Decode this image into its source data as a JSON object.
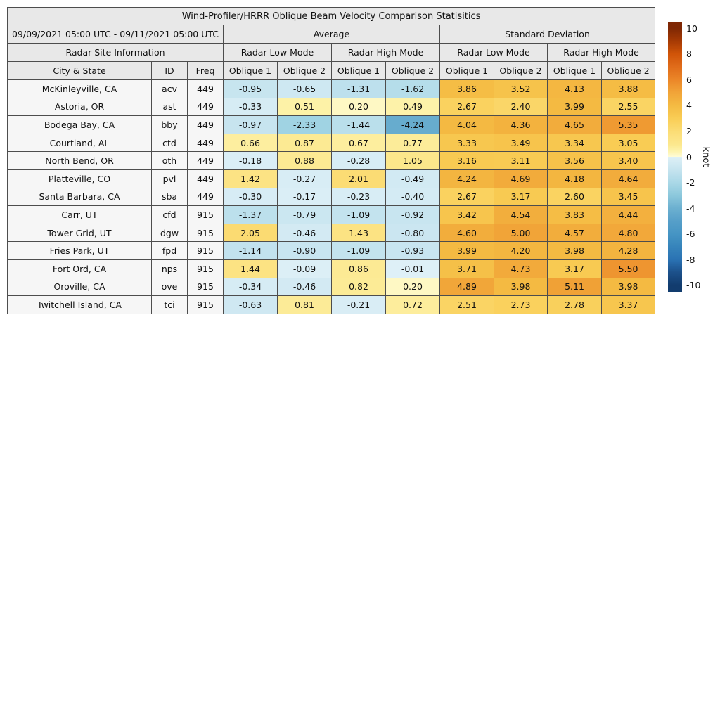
{
  "table": {
    "title": "Wind-Profiler/HRRR Oblique Beam Velocity Comparison Statisitics",
    "group_row": [
      {
        "label": "09/09/2021 05:00 UTC - 09/11/2021 05:00 UTC",
        "span": 3
      },
      {
        "label": "Average",
        "span": 4
      },
      {
        "label": "Standard Deviation",
        "span": 4
      }
    ],
    "mode_row": [
      {
        "label": "Radar Site Information",
        "span": 3
      },
      {
        "label": "Radar Low Mode",
        "span": 2
      },
      {
        "label": "Radar High Mode",
        "span": 2
      },
      {
        "label": "Radar Low Mode",
        "span": 2
      },
      {
        "label": "Radar High Mode",
        "span": 2
      }
    ],
    "column_headers": [
      "City & State",
      "ID",
      "Freq",
      "Oblique 1",
      "Oblique 2",
      "Oblique 1",
      "Oblique 2",
      "Oblique 1",
      "Oblique 2",
      "Oblique 1",
      "Oblique 2"
    ],
    "header_bg": "#e8e8e8",
    "row_header_bg": "#f6f6f6",
    "border_color": "#4d4d4d"
  },
  "chart_data": {
    "type": "heatmap",
    "title": "Wind-Profiler/HRRR Oblique Beam Velocity Comparison Statisitics",
    "period": "09/09/2021 05:00 UTC - 09/11/2021 05:00 UTC",
    "value_columns": [
      "Average / Radar Low Mode / Oblique 1",
      "Average / Radar Low Mode / Oblique 2",
      "Average / Radar High Mode / Oblique 1",
      "Average / Radar High Mode / Oblique 2",
      "Standard Deviation / Radar Low Mode / Oblique 1",
      "Standard Deviation / Radar Low Mode / Oblique 2",
      "Standard Deviation / Radar High Mode / Oblique 1",
      "Standard Deviation / Radar High Mode / Oblique 2"
    ],
    "rows": [
      {
        "city": "McKinleyville, CA",
        "id": "acv",
        "freq": "449",
        "values": [
          -0.95,
          -0.65,
          -1.31,
          -1.62,
          3.86,
          3.52,
          4.13,
          3.88
        ]
      },
      {
        "city": "Astoria, OR",
        "id": "ast",
        "freq": "449",
        "values": [
          -0.33,
          0.51,
          0.2,
          0.49,
          2.67,
          2.4,
          3.99,
          2.55
        ]
      },
      {
        "city": "Bodega Bay, CA",
        "id": "bby",
        "freq": "449",
        "values": [
          -0.97,
          -2.33,
          -1.44,
          -4.24,
          4.04,
          4.36,
          4.65,
          5.35
        ]
      },
      {
        "city": "Courtland, AL",
        "id": "ctd",
        "freq": "449",
        "values": [
          0.66,
          0.87,
          0.67,
          0.77,
          3.33,
          3.49,
          3.34,
          3.05
        ]
      },
      {
        "city": "North Bend, OR",
        "id": "oth",
        "freq": "449",
        "values": [
          -0.18,
          0.88,
          -0.28,
          1.05,
          3.16,
          3.11,
          3.56,
          3.4
        ]
      },
      {
        "city": "Platteville, CO",
        "id": "pvl",
        "freq": "449",
        "values": [
          1.42,
          -0.27,
          2.01,
          -0.49,
          4.24,
          4.69,
          4.18,
          4.64
        ]
      },
      {
        "city": "Santa Barbara, CA",
        "id": "sba",
        "freq": "449",
        "values": [
          -0.3,
          -0.17,
          -0.23,
          -0.4,
          2.67,
          3.17,
          2.6,
          3.45
        ]
      },
      {
        "city": "Carr, UT",
        "id": "cfd",
        "freq": "915",
        "values": [
          -1.37,
          -0.79,
          -1.09,
          -0.92,
          3.42,
          4.54,
          3.83,
          4.44
        ]
      },
      {
        "city": "Tower Grid, UT",
        "id": "dgw",
        "freq": "915",
        "values": [
          2.05,
          -0.46,
          1.43,
          -0.8,
          4.6,
          5.0,
          4.57,
          4.8
        ]
      },
      {
        "city": "Fries Park, UT",
        "id": "fpd",
        "freq": "915",
        "values": [
          -1.14,
          -0.9,
          -1.09,
          -0.93,
          3.99,
          4.2,
          3.98,
          4.28
        ]
      },
      {
        "city": "Fort Ord, CA",
        "id": "nps",
        "freq": "915",
        "values": [
          1.44,
          -0.09,
          0.86,
          -0.01,
          3.71,
          4.73,
          3.17,
          5.5
        ]
      },
      {
        "city": "Oroville, CA",
        "id": "ove",
        "freq": "915",
        "values": [
          -0.34,
          -0.46,
          0.82,
          0.2,
          4.89,
          3.98,
          5.11,
          3.98
        ]
      },
      {
        "city": "Twitchell Island, CA",
        "id": "tci",
        "freq": "915",
        "values": [
          -0.63,
          0.81,
          -0.21,
          0.72,
          2.51,
          2.73,
          2.78,
          3.37
        ]
      }
    ],
    "value_format_decimals": 2,
    "colorbar": {
      "label": "knot",
      "vmin": -10.5,
      "vmax": 10.5,
      "ticks": [
        10,
        8,
        6,
        4,
        2,
        0,
        -2,
        -4,
        -6,
        -8,
        -10
      ]
    },
    "colormap_stops": [
      {
        "v": -10,
        "c": "#123c6e"
      },
      {
        "v": -9,
        "c": "#1c508a"
      },
      {
        "v": -8,
        "c": "#2a72b3"
      },
      {
        "v": -7,
        "c": "#3684bb"
      },
      {
        "v": -6,
        "c": "#4695c4"
      },
      {
        "v": -5,
        "c": "#569fc9"
      },
      {
        "v": -4,
        "c": "#6cb0d0"
      },
      {
        "v": -3,
        "c": "#8cc8dc"
      },
      {
        "v": -2,
        "c": "#aad8e7"
      },
      {
        "v": -1,
        "c": "#c6e4ef"
      },
      {
        "v": -0.001,
        "c": "#def0f7"
      },
      {
        "v": 0.001,
        "c": "#fffcd6"
      },
      {
        "v": 0.5,
        "c": "#fdf2a8"
      },
      {
        "v": 1,
        "c": "#fce78c"
      },
      {
        "v": 1.5,
        "c": "#fce282"
      },
      {
        "v": 2,
        "c": "#fbdc74"
      },
      {
        "v": 3,
        "c": "#f9cd55"
      },
      {
        "v": 4,
        "c": "#f4ba42"
      },
      {
        "v": 5,
        "c": "#f1a438"
      },
      {
        "v": 6,
        "c": "#eb8628"
      },
      {
        "v": 7,
        "c": "#e06c1a"
      },
      {
        "v": 8,
        "c": "#d05408"
      },
      {
        "v": 9,
        "c": "#a63a04"
      },
      {
        "v": 10,
        "c": "#7f2704"
      }
    ]
  }
}
